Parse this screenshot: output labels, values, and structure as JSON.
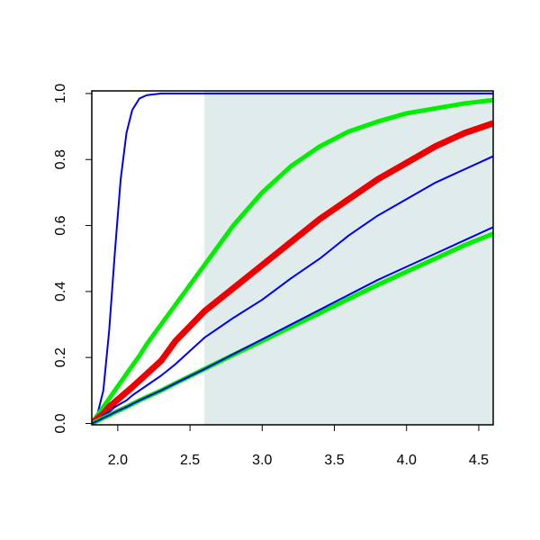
{
  "chart_data": {
    "type": "line",
    "x": [
      1.82,
      1.86,
      1.9,
      1.94,
      1.98,
      2.02,
      2.06,
      2.1,
      2.15,
      2.2,
      2.3,
      2.4,
      2.6,
      2.8,
      3.0,
      3.2,
      3.4,
      3.6,
      3.8,
      4.0,
      4.2,
      4.4,
      4.6
    ],
    "series": [
      {
        "color": "#0000ee",
        "width": 2,
        "values": [
          0,
          0.03,
          0.1,
          0.28,
          0.52,
          0.74,
          0.88,
          0.95,
          0.985,
          0.995,
          1,
          1,
          1,
          1,
          1,
          1,
          1,
          1,
          1,
          1,
          1,
          1,
          1
        ]
      },
      {
        "color": "#00ee00",
        "width": 5,
        "values": [
          0,
          0.025,
          0.05,
          0.075,
          0.1,
          0.125,
          0.15,
          0.175,
          0.205,
          0.24,
          0.3,
          0.36,
          0.48,
          0.6,
          0.7,
          0.78,
          0.84,
          0.885,
          0.915,
          0.94,
          0.955,
          0.97,
          0.98
        ]
      },
      {
        "color": "#ee0000",
        "width": 7,
        "values": [
          0,
          0.015,
          0.03,
          0.05,
          0.065,
          0.08,
          0.095,
          0.11,
          0.13,
          0.15,
          0.19,
          0.25,
          0.34,
          0.41,
          0.48,
          0.55,
          0.62,
          0.68,
          0.74,
          0.79,
          0.84,
          0.88,
          0.91
        ]
      },
      {
        "color": "#0000ee",
        "width": 2,
        "values": [
          0,
          0.01,
          0.025,
          0.035,
          0.05,
          0.06,
          0.07,
          0.085,
          0.1,
          0.115,
          0.145,
          0.18,
          0.26,
          0.32,
          0.375,
          0.44,
          0.5,
          0.57,
          0.63,
          0.68,
          0.73,
          0.77,
          0.81
        ]
      },
      {
        "color": "#00ee00",
        "width": 5,
        "values": [
          0,
          0.008,
          0.017,
          0.025,
          0.034,
          0.042,
          0.05,
          0.059,
          0.07,
          0.08,
          0.1,
          0.122,
          0.165,
          0.208,
          0.25,
          0.293,
          0.335,
          0.378,
          0.42,
          0.46,
          0.5,
          0.54,
          0.575
        ]
      },
      {
        "color": "#0000ee",
        "width": 2,
        "values": [
          0,
          0.008,
          0.017,
          0.025,
          0.034,
          0.042,
          0.05,
          0.059,
          0.07,
          0.08,
          0.1,
          0.122,
          0.165,
          0.21,
          0.255,
          0.3,
          0.345,
          0.39,
          0.435,
          0.475,
          0.515,
          0.555,
          0.595
        ]
      }
    ],
    "shaded_region": {
      "x": [
        2.6,
        4.6
      ],
      "y": [
        0,
        1
      ],
      "color": "#dfeceb"
    },
    "xlim": [
      1.82,
      4.6
    ],
    "ylim": [
      -0.004,
      1.008
    ],
    "xticks": [
      {
        "value": 2.0,
        "label": "2.0"
      },
      2.5,
      {
        "value": 3.0,
        "label": "3.0"
      },
      3.5,
      {
        "value": 4.0,
        "label": "4.0"
      },
      4.5
    ],
    "yticks": [
      {
        "value": 0.0,
        "label": "0.0"
      },
      0.2,
      0.4,
      0.6,
      0.8,
      {
        "value": 1.0,
        "label": "1.0"
      }
    ]
  }
}
